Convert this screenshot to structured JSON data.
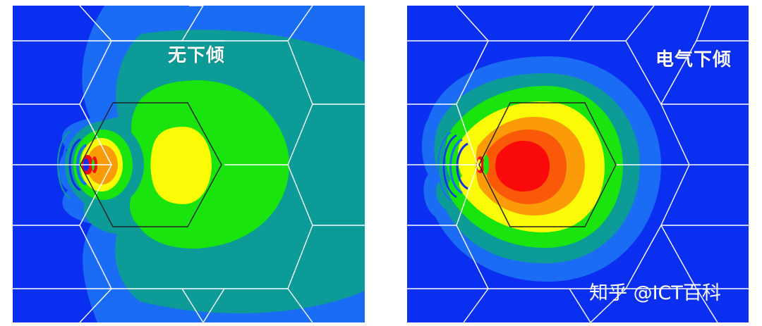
{
  "panels": [
    {
      "id": "left",
      "label": "无下倾"
    },
    {
      "id": "right",
      "label": "电气下倾"
    }
  ],
  "watermark": "知乎 @ICT百科",
  "colors": {
    "background_blue": "#0a2ff0",
    "light_blue": "#1a6cf5",
    "teal": "#0d9b98",
    "green": "#19e40d",
    "yellow": "#fbfb08",
    "orange": "#fb9b07",
    "red": "#fa0a0a",
    "grid_line": "#ffffff",
    "cell_outline": "#222222"
  }
}
